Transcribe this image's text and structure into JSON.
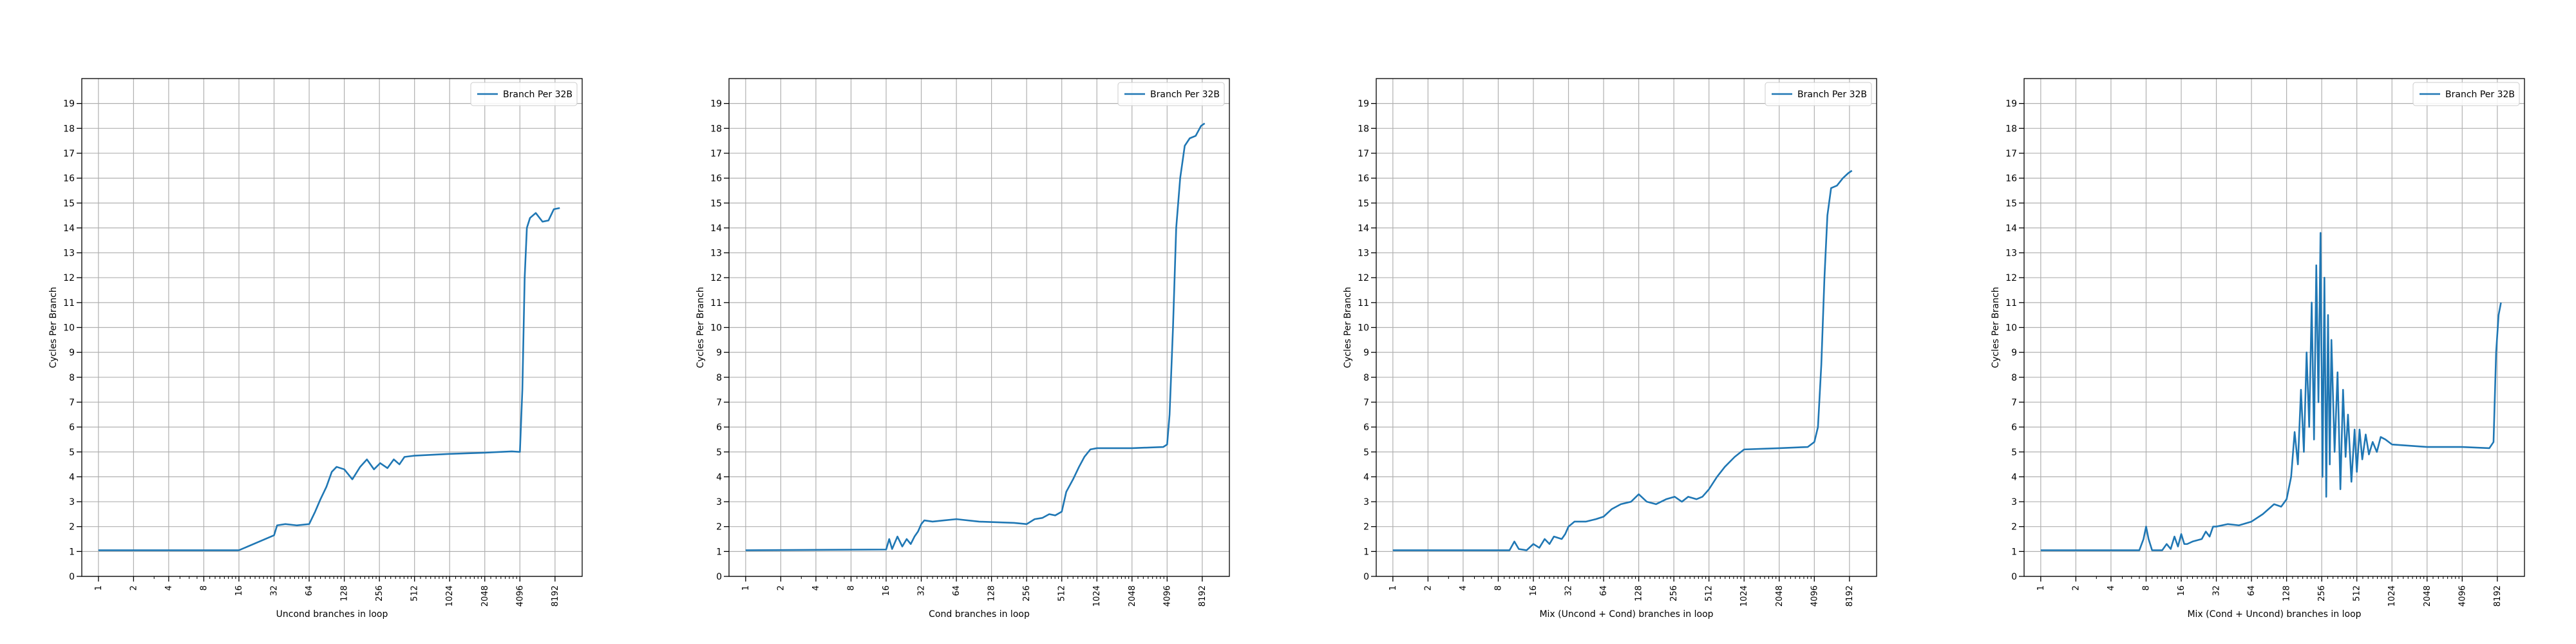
{
  "chart_data": [
    {
      "type": "line",
      "xlabel": "Uncond branches in loop",
      "ylabel": "Cycles Per Branch",
      "xscale": "log2",
      "xlim": [
        0.72,
        14000
      ],
      "ylim": [
        0,
        20
      ],
      "xticks": [
        1,
        2,
        4,
        8,
        16,
        32,
        64,
        128,
        256,
        512,
        1024,
        2048,
        4096,
        8192
      ],
      "yticks": [
        0,
        1,
        2,
        3,
        4,
        5,
        6,
        7,
        8,
        9,
        10,
        11,
        12,
        13,
        14,
        15,
        16,
        17,
        18,
        19
      ],
      "grid": true,
      "legend_position": "top-right",
      "series": [
        {
          "name": "Branch Per 32B",
          "color": "#1f77b4",
          "points": [
            [
              1,
              1.05
            ],
            [
              16,
              1.05
            ],
            [
              32,
              1.65
            ],
            [
              34,
              2.05
            ],
            [
              40,
              2.1
            ],
            [
              50,
              2.05
            ],
            [
              64,
              2.1
            ],
            [
              72,
              2.6
            ],
            [
              80,
              3.1
            ],
            [
              90,
              3.6
            ],
            [
              100,
              4.2
            ],
            [
              110,
              4.4
            ],
            [
              128,
              4.3
            ],
            [
              150,
              3.9
            ],
            [
              175,
              4.4
            ],
            [
              200,
              4.7
            ],
            [
              230,
              4.3
            ],
            [
              260,
              4.55
            ],
            [
              300,
              4.35
            ],
            [
              340,
              4.7
            ],
            [
              380,
              4.5
            ],
            [
              420,
              4.8
            ],
            [
              512,
              4.85
            ],
            [
              1024,
              4.92
            ],
            [
              2048,
              4.97
            ],
            [
              3500,
              5.02
            ],
            [
              4096,
              5.0
            ],
            [
              4300,
              7.5
            ],
            [
              4500,
              12.0
            ],
            [
              4700,
              14.0
            ],
            [
              5000,
              14.4
            ],
            [
              5600,
              14.6
            ],
            [
              6400,
              14.25
            ],
            [
              7200,
              14.3
            ],
            [
              8000,
              14.75
            ],
            [
              9000,
              14.8
            ]
          ]
        }
      ]
    },
    {
      "type": "line",
      "xlabel": "Cond branches in loop",
      "ylabel": "Cycles Per Branch",
      "xscale": "log2",
      "xlim": [
        0.72,
        14000
      ],
      "ylim": [
        0,
        20
      ],
      "xticks": [
        1,
        2,
        4,
        8,
        16,
        32,
        64,
        128,
        256,
        512,
        1024,
        2048,
        4096,
        8192
      ],
      "yticks": [
        0,
        1,
        2,
        3,
        4,
        5,
        6,
        7,
        8,
        9,
        10,
        11,
        12,
        13,
        14,
        15,
        16,
        17,
        18,
        19
      ],
      "grid": true,
      "legend_position": "top-right",
      "series": [
        {
          "name": "Branch Per 32B",
          "color": "#1f77b4",
          "points": [
            [
              1,
              1.05
            ],
            [
              16,
              1.08
            ],
            [
              17,
              1.5
            ],
            [
              18,
              1.1
            ],
            [
              20,
              1.6
            ],
            [
              22,
              1.2
            ],
            [
              24,
              1.5
            ],
            [
              26,
              1.3
            ],
            [
              28,
              1.6
            ],
            [
              30,
              1.8
            ],
            [
              32,
              2.1
            ],
            [
              34,
              2.25
            ],
            [
              40,
              2.2
            ],
            [
              50,
              2.25
            ],
            [
              64,
              2.3
            ],
            [
              100,
              2.2
            ],
            [
              200,
              2.15
            ],
            [
              256,
              2.1
            ],
            [
              300,
              2.3
            ],
            [
              350,
              2.35
            ],
            [
              400,
              2.5
            ],
            [
              450,
              2.45
            ],
            [
              512,
              2.6
            ],
            [
              560,
              3.4
            ],
            [
              640,
              3.9
            ],
            [
              720,
              4.4
            ],
            [
              800,
              4.8
            ],
            [
              900,
              5.1
            ],
            [
              1024,
              5.15
            ],
            [
              2048,
              5.15
            ],
            [
              3800,
              5.2
            ],
            [
              4096,
              5.3
            ],
            [
              4300,
              6.5
            ],
            [
              4600,
              10.0
            ],
            [
              4900,
              14.0
            ],
            [
              5300,
              16.0
            ],
            [
              5800,
              17.3
            ],
            [
              6400,
              17.6
            ],
            [
              7200,
              17.7
            ],
            [
              8000,
              18.1
            ],
            [
              8600,
              18.2
            ]
          ]
        }
      ]
    },
    {
      "type": "line",
      "xlabel": "Mix (Uncond + Cond) branches in loop",
      "ylabel": "Cycles Per Branch",
      "xscale": "log2",
      "xlim": [
        0.72,
        14000
      ],
      "ylim": [
        0,
        20
      ],
      "xticks": [
        1,
        2,
        4,
        8,
        16,
        32,
        64,
        128,
        256,
        512,
        1024,
        2048,
        4096,
        8192
      ],
      "yticks": [
        0,
        1,
        2,
        3,
        4,
        5,
        6,
        7,
        8,
        9,
        10,
        11,
        12,
        13,
        14,
        15,
        16,
        17,
        18,
        19
      ],
      "grid": true,
      "legend_position": "top-right",
      "series": [
        {
          "name": "Branch Per 32B",
          "color": "#1f77b4",
          "points": [
            [
              1,
              1.05
            ],
            [
              10,
              1.05
            ],
            [
              11,
              1.4
            ],
            [
              12,
              1.1
            ],
            [
              14,
              1.05
            ],
            [
              16,
              1.3
            ],
            [
              18,
              1.15
            ],
            [
              20,
              1.5
            ],
            [
              22,
              1.3
            ],
            [
              24,
              1.6
            ],
            [
              28,
              1.5
            ],
            [
              30,
              1.7
            ],
            [
              32,
              2.0
            ],
            [
              36,
              2.2
            ],
            [
              45,
              2.2
            ],
            [
              55,
              2.3
            ],
            [
              64,
              2.4
            ],
            [
              75,
              2.7
            ],
            [
              90,
              2.9
            ],
            [
              110,
              3.0
            ],
            [
              128,
              3.3
            ],
            [
              150,
              3.0
            ],
            [
              180,
              2.9
            ],
            [
              220,
              3.1
            ],
            [
              260,
              3.2
            ],
            [
              300,
              3.0
            ],
            [
              340,
              3.2
            ],
            [
              400,
              3.1
            ],
            [
              450,
              3.2
            ],
            [
              512,
              3.5
            ],
            [
              600,
              4.0
            ],
            [
              700,
              4.4
            ],
            [
              850,
              4.8
            ],
            [
              1024,
              5.1
            ],
            [
              2048,
              5.15
            ],
            [
              3600,
              5.2
            ],
            [
              4096,
              5.4
            ],
            [
              4400,
              6.0
            ],
            [
              4700,
              8.5
            ],
            [
              5000,
              12.0
            ],
            [
              5300,
              14.5
            ],
            [
              5700,
              15.6
            ],
            [
              6400,
              15.7
            ],
            [
              7200,
              16.0
            ],
            [
              8000,
              16.2
            ],
            [
              8600,
              16.3
            ]
          ]
        }
      ]
    },
    {
      "type": "line",
      "xlabel": "Mix (Cond + Uncond) branches in loop",
      "ylabel": "Cycles Per Branch",
      "xscale": "log2",
      "xlim": [
        0.72,
        14000
      ],
      "ylim": [
        0,
        20
      ],
      "xticks": [
        1,
        2,
        4,
        8,
        16,
        32,
        64,
        128,
        256,
        512,
        1024,
        2048,
        4096,
        8192
      ],
      "yticks": [
        0,
        1,
        2,
        3,
        4,
        5,
        6,
        7,
        8,
        9,
        10,
        11,
        12,
        13,
        14,
        15,
        16,
        17,
        18,
        19
      ],
      "grid": true,
      "legend_position": "top-right",
      "series": [
        {
          "name": "Branch Per 32B",
          "color": "#1f77b4",
          "points": [
            [
              1,
              1.05
            ],
            [
              7,
              1.05
            ],
            [
              7.6,
              1.5
            ],
            [
              8,
              2.0
            ],
            [
              8.4,
              1.5
            ],
            [
              9,
              1.05
            ],
            [
              11,
              1.05
            ],
            [
              12,
              1.3
            ],
            [
              13,
              1.1
            ],
            [
              14,
              1.6
            ],
            [
              15,
              1.2
            ],
            [
              16,
              1.7
            ],
            [
              17,
              1.3
            ],
            [
              18,
              1.3
            ],
            [
              20,
              1.4
            ],
            [
              24,
              1.5
            ],
            [
              26,
              1.8
            ],
            [
              28,
              1.6
            ],
            [
              30,
              2.0
            ],
            [
              32,
              2.0
            ],
            [
              40,
              2.1
            ],
            [
              50,
              2.05
            ],
            [
              64,
              2.2
            ],
            [
              80,
              2.5
            ],
            [
              100,
              2.9
            ],
            [
              115,
              2.8
            ],
            [
              128,
              3.1
            ],
            [
              140,
              4.0
            ],
            [
              150,
              5.8
            ],
            [
              160,
              4.5
            ],
            [
              170,
              7.5
            ],
            [
              180,
              5.0
            ],
            [
              190,
              9.0
            ],
            [
              200,
              6.0
            ],
            [
              210,
              11.0
            ],
            [
              220,
              5.5
            ],
            [
              230,
              12.5
            ],
            [
              240,
              7.0
            ],
            [
              250,
              13.8
            ],
            [
              260,
              4.0
            ],
            [
              270,
              12.0
            ],
            [
              280,
              3.2
            ],
            [
              290,
              10.5
            ],
            [
              300,
              4.5
            ],
            [
              310,
              9.5
            ],
            [
              330,
              5.0
            ],
            [
              350,
              8.2
            ],
            [
              370,
              3.5
            ],
            [
              390,
              7.5
            ],
            [
              410,
              4.8
            ],
            [
              430,
              6.5
            ],
            [
              460,
              3.8
            ],
            [
              490,
              5.9
            ],
            [
              512,
              4.2
            ],
            [
              540,
              5.9
            ],
            [
              570,
              4.7
            ],
            [
              610,
              5.7
            ],
            [
              650,
              4.9
            ],
            [
              700,
              5.4
            ],
            [
              760,
              5.0
            ],
            [
              820,
              5.6
            ],
            [
              900,
              5.5
            ],
            [
              1024,
              5.3
            ],
            [
              2048,
              5.2
            ],
            [
              4096,
              5.2
            ],
            [
              7000,
              5.15
            ],
            [
              7600,
              5.4
            ],
            [
              8000,
              9.0
            ],
            [
              8400,
              10.5
            ],
            [
              8800,
              11.0
            ]
          ]
        }
      ]
    }
  ]
}
